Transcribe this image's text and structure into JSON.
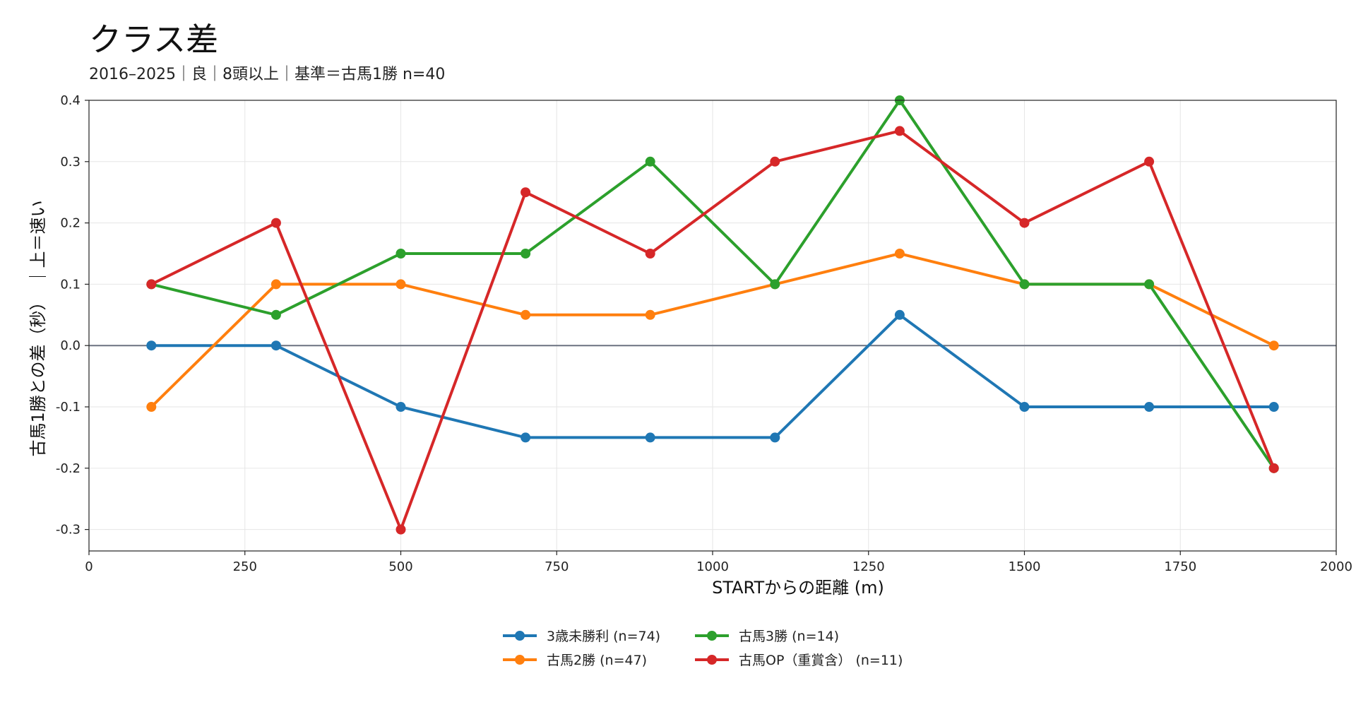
{
  "chart_data": {
    "type": "line",
    "title": "クラス差",
    "subtitle": "2016–2025｜良｜8頭以上｜基準＝古馬1勝 n=40",
    "xlabel": "STARTからの距離 (m)",
    "ylabel": "古馬1勝との差（秒）　｜上＝速い",
    "xlim": [
      0,
      2000
    ],
    "ylim": [
      -0.335,
      0.4
    ],
    "x_ticks": [
      0,
      250,
      500,
      750,
      1000,
      1250,
      1500,
      1750,
      2000
    ],
    "x_tick_labels": [
      "0",
      "250",
      "500",
      "750",
      "1000",
      "1250",
      "1500",
      "1750",
      "2000"
    ],
    "y_ticks": [
      -0.3,
      -0.2,
      -0.1,
      0.0,
      0.1,
      0.2,
      0.3,
      0.4
    ],
    "y_tick_labels": [
      "-0.3",
      "-0.2",
      "-0.1",
      "0.0",
      "0.1",
      "0.2",
      "0.3",
      "0.4"
    ],
    "grid": true,
    "reference_line": 0,
    "legend_position": "bottom-center",
    "x": [
      100,
      300,
      500,
      700,
      900,
      1100,
      1300,
      1500,
      1700,
      1900
    ],
    "series": [
      {
        "name": "3歳未勝利 (n=74)",
        "color": "#1f77b4",
        "values": [
          0.0,
          0.0,
          -0.1,
          -0.15,
          -0.15,
          -0.15,
          0.05,
          -0.1,
          -0.1,
          -0.1
        ]
      },
      {
        "name": "古馬2勝 (n=47)",
        "color": "#ff7f0e",
        "values": [
          -0.1,
          0.1,
          0.1,
          0.05,
          0.05,
          0.1,
          0.15,
          0.1,
          0.1,
          0.0
        ]
      },
      {
        "name": "古馬3勝 (n=14)",
        "color": "#2ca02c",
        "values": [
          0.1,
          0.05,
          0.15,
          0.15,
          0.3,
          0.1,
          0.4,
          0.1,
          0.1,
          -0.2
        ]
      },
      {
        "name": "古馬OP（重賞含） (n=11)",
        "color": "#d62728",
        "values": [
          0.1,
          0.2,
          -0.3,
          0.25,
          0.15,
          0.3,
          0.35,
          0.2,
          0.3,
          -0.2
        ]
      }
    ]
  }
}
